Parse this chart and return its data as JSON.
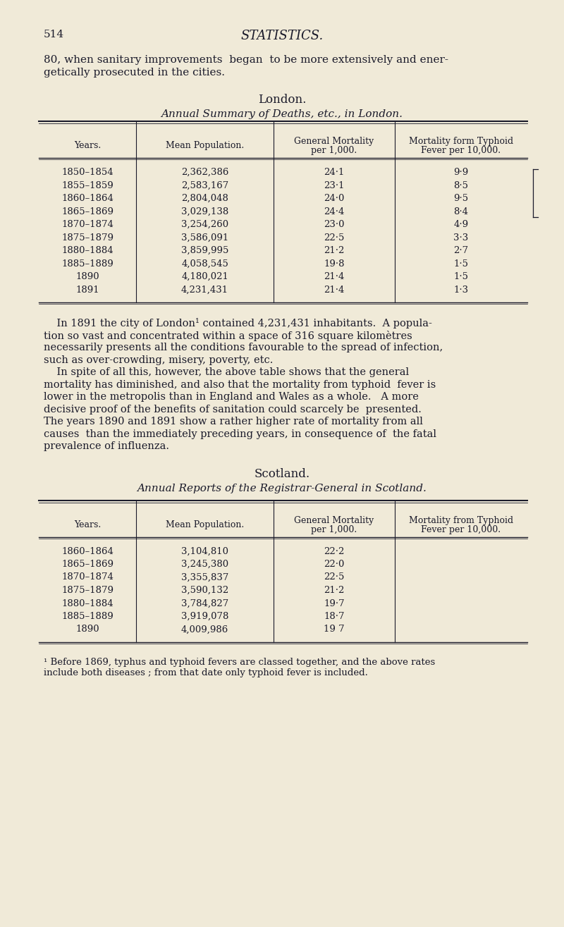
{
  "bg_color": "#f0ead8",
  "text_color": "#1a1a2a",
  "page_number": "514",
  "page_title": "STATISTICS.",
  "intro_line1": "80, when sanitary improvements  began  to be more extensively and ener-",
  "intro_line2": "getically prosecuted in the cities.",
  "london_section_title": "London.",
  "london_table_title": "Annual Summary of Deaths, etc., in London.",
  "london_col_headers": [
    "Years.",
    "Mean Population.",
    "General Mortality\nper 1,000.",
    "Mortality form Typhoid\nFever per 10,000."
  ],
  "london_rows": [
    [
      "1850–1854",
      "2,362,386",
      "24·1",
      "9·9"
    ],
    [
      "1855–1859",
      "2,583,167",
      "23·1",
      "8·5"
    ],
    [
      "1860–1864",
      "2,804,048",
      "24·0",
      "9·5"
    ],
    [
      "1865–1869",
      "3,029,138",
      "24·4",
      "8·4"
    ],
    [
      "1870–1874",
      "3,254,260",
      "23·0",
      "4·9"
    ],
    [
      "1875–1879",
      "3,586,091",
      "22·5",
      "3·3"
    ],
    [
      "1880–1884",
      "3,859,995",
      "21·2",
      "2·7"
    ],
    [
      "1885–1889",
      "4,058,545",
      "19·8",
      "1·5"
    ],
    [
      "1890",
      "4,180,021",
      "21·4",
      "1·5"
    ],
    [
      "1891",
      "4,231,431",
      "21·4",
      "1·3"
    ]
  ],
  "london_body_text": [
    "    In 1891 the city of London¹ contained 4,231,431 inhabitants.  A popula-",
    "tion so vast and concentrated within a space of 316 square kilomètres",
    "necessarily presents all the conditions favourable to the spread of infection,",
    "such as over-crowding, misery, poverty, etc.",
    "    In spite of all this, however, the above table shows that the general",
    "mortality has diminished, and also that the mortality from typhoid  fever is",
    "lower in the metropolis than in England and Wales as a whole.   A more",
    "decisive proof of the benefits of sanitation could scarcely be  presented.",
    "The years 1890 and 1891 show a rather higher rate of mortality from all",
    "causes  than the immediately preceding years, in consequence of  the fatal",
    "prevalence of influenza."
  ],
  "scotland_section_title": "Scotland.",
  "scotland_table_title": "Annual Reports of the Registrar-General in Scotland.",
  "scotland_col_headers": [
    "Years.",
    "Mean Population.",
    "General Mortality\nper 1,000.",
    "Mortality from Typhoid\nFever per 10,000."
  ],
  "scotland_rows": [
    [
      "1860–1864",
      "3,104,810",
      "22·2",
      ""
    ],
    [
      "1865–1869",
      "3,245,380",
      "22·0",
      ""
    ],
    [
      "1870–1874",
      "3,355,837",
      "22·5",
      ""
    ],
    [
      "1875–1879",
      "3,590,132",
      "21·2",
      ""
    ],
    [
      "1880–1884",
      "3,784,827",
      "19·7",
      ""
    ],
    [
      "1885–1889",
      "3,919,078",
      "18·7",
      ""
    ],
    [
      "1890",
      "4,009,986",
      "19 7",
      ""
    ]
  ],
  "footnote_line1": "¹ Before 1869, typhus and typhoid fevers are classed together, and the above rates",
  "footnote_line2": "include both diseases ; from that date only typhoid fever is included."
}
